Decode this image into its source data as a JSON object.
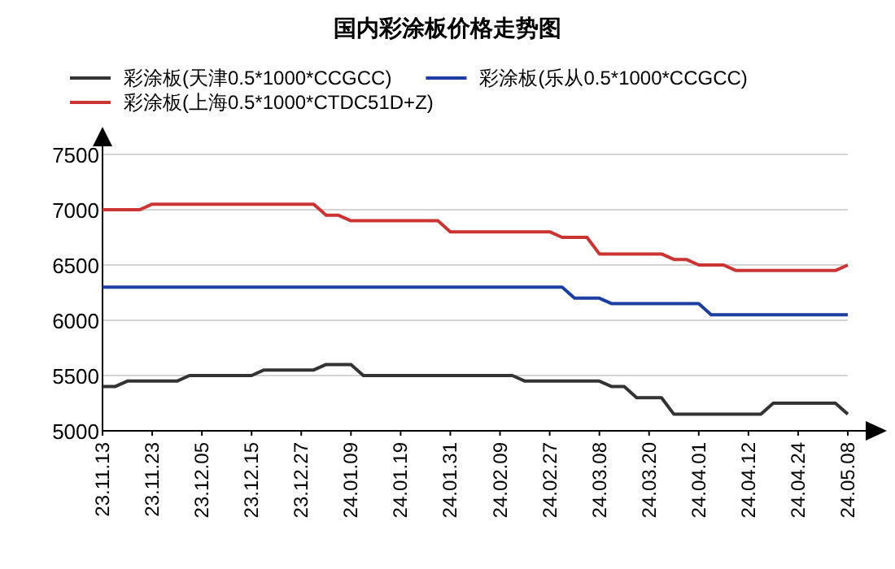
{
  "chart_data": {
    "type": "line",
    "title": "国内彩涂板价格走势图",
    "categories": [
      "23.11.13",
      null,
      null,
      null,
      "23.11.23",
      null,
      null,
      null,
      "23.12.05",
      null,
      null,
      null,
      "23.12.15",
      null,
      null,
      null,
      "23.12.27",
      null,
      null,
      null,
      "24.01.09",
      null,
      null,
      null,
      "24.01.19",
      null,
      null,
      null,
      "24.01.31",
      null,
      null,
      null,
      "24.02.09",
      null,
      null,
      null,
      "24.02.27",
      null,
      null,
      null,
      "24.03.08",
      null,
      null,
      null,
      "24.03.20",
      null,
      null,
      null,
      "24.04.01",
      null,
      null,
      null,
      "24.04.12",
      null,
      null,
      null,
      "24.04.24",
      null,
      null,
      null,
      "24.05.08"
    ],
    "series": [
      {
        "name": "彩涂板(天津0.5*1000*CCGCC)",
        "color": "#333333",
        "values": [
          5400,
          5400,
          5450,
          5450,
          5450,
          5450,
          5450,
          5500,
          5500,
          5500,
          5500,
          5500,
          5500,
          5550,
          5550,
          5550,
          5550,
          5550,
          5600,
          5600,
          5600,
          5500,
          5500,
          5500,
          5500,
          5500,
          5500,
          5500,
          5500,
          5500,
          5500,
          5500,
          5500,
          5500,
          5450,
          5450,
          5450,
          5450,
          5450,
          5450,
          5450,
          5400,
          5400,
          5300,
          5300,
          5300,
          5150,
          5150,
          5150,
          5150,
          5150,
          5150,
          5150,
          5150,
          5250,
          5250,
          5250,
          5250,
          5250,
          5250,
          5150
        ]
      },
      {
        "name": "彩涂板(乐从0.5*1000*CCGCC)",
        "color": "#1c3ea0",
        "values": [
          6300,
          6300,
          6300,
          6300,
          6300,
          6300,
          6300,
          6300,
          6300,
          6300,
          6300,
          6300,
          6300,
          6300,
          6300,
          6300,
          6300,
          6300,
          6300,
          6300,
          6300,
          6300,
          6300,
          6300,
          6300,
          6300,
          6300,
          6300,
          6300,
          6300,
          6300,
          6300,
          6300,
          6300,
          6300,
          6300,
          6300,
          6300,
          6200,
          6200,
          6200,
          6150,
          6150,
          6150,
          6150,
          6150,
          6150,
          6150,
          6150,
          6050,
          6050,
          6050,
          6050,
          6050,
          6050,
          6050,
          6050,
          6050,
          6050,
          6050,
          6050
        ]
      },
      {
        "name": "彩涂板(上海0.5*1000*CTDC51D+Z)",
        "color": "#cc3333",
        "values": [
          7000,
          7000,
          7000,
          7000,
          7050,
          7050,
          7050,
          7050,
          7050,
          7050,
          7050,
          7050,
          7050,
          7050,
          7050,
          7050,
          7050,
          7050,
          6950,
          6950,
          6900,
          6900,
          6900,
          6900,
          6900,
          6900,
          6900,
          6900,
          6800,
          6800,
          6800,
          6800,
          6800,
          6800,
          6800,
          6800,
          6800,
          6750,
          6750,
          6750,
          6600,
          6600,
          6600,
          6600,
          6600,
          6600,
          6550,
          6550,
          6500,
          6500,
          6500,
          6450,
          6450,
          6450,
          6450,
          6450,
          6450,
          6450,
          6450,
          6450,
          6500
        ]
      }
    ],
    "ylim": [
      5000,
      7500
    ],
    "yticks": [
      5000,
      5500,
      6000,
      6500,
      7000,
      7500
    ],
    "grid": "y",
    "legend": "top"
  }
}
